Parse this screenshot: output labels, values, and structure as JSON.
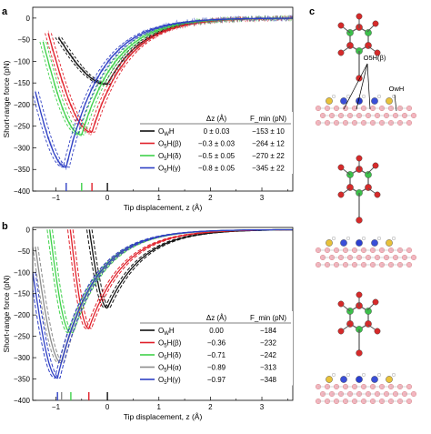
{
  "panels": {
    "a": "a",
    "b": "b",
    "c": "c"
  },
  "colors": {
    "OwH": "#111111",
    "O5H_beta": "#e0202a",
    "O5H_delta": "#3fd14a",
    "O5H_alpha": "#8c8c8c",
    "O5H_gamma": "#2e3fc4"
  },
  "chart_data": [
    {
      "id": "a",
      "type": "line",
      "xlabel": "Tip displacement, z (Å)",
      "ylabel": "Short-range force (pN)",
      "xlim": [
        -1.45,
        3.6
      ],
      "ylim": [
        -400,
        25
      ],
      "xticks": [
        -1,
        0,
        1,
        2,
        3
      ],
      "yticks": [
        0,
        -50,
        -100,
        -150,
        -200,
        -250,
        -300,
        -350,
        -400
      ],
      "legend": {
        "position": "lower-right",
        "headers": [
          "Δz (Å)",
          "F_min (pN)"
        ]
      },
      "series": [
        {
          "name": "OwH",
          "key": "OwH",
          "dz": "0 ± 0.03",
          "fmin": "−153 ± 10",
          "dz_value": 0.0,
          "fmin_value": -153,
          "x_start": -0.95,
          "y_start": -45
        },
        {
          "name": "O5H(β)",
          "key": "O5H_beta",
          "dz": "−0.3 ± 0.03",
          "fmin": "−264 ± 12",
          "dz_value": -0.3,
          "fmin_value": -264,
          "x_start": -1.15,
          "y_start": -35
        },
        {
          "name": "O5H(δ)",
          "key": "O5H_delta",
          "dz": "−0.5 ± 0.05",
          "fmin": "−270 ± 22",
          "dz_value": -0.5,
          "fmin_value": -270,
          "x_start": -1.25,
          "y_start": -55
        },
        {
          "name": "O5H(γ)",
          "key": "O5H_gamma",
          "dz": "−0.8 ± 0.05",
          "fmin": "−345 ± 22",
          "dz_value": -0.8,
          "fmin_value": -345,
          "x_start": -1.4,
          "y_start": -170
        }
      ]
    },
    {
      "id": "b",
      "type": "line",
      "xlabel": "Tip displacement, z (Å)",
      "ylabel": "Short-range force (pN)",
      "xlim": [
        -1.45,
        3.6
      ],
      "ylim": [
        -400,
        5
      ],
      "xticks": [
        -1,
        0,
        1,
        2,
        3
      ],
      "yticks": [
        0,
        -50,
        -100,
        -150,
        -200,
        -250,
        -300,
        -350,
        -400
      ],
      "legend": {
        "position": "lower-right",
        "headers": [
          "Δz (Å)",
          "F_min (pN)"
        ]
      },
      "series": [
        {
          "name": "OwH",
          "key": "OwH",
          "dz": "0.00",
          "fmin": "−184",
          "dz_value": 0.0,
          "fmin_value": -184,
          "x_start": -0.35,
          "y_start": 0
        },
        {
          "name": "O5H(β)",
          "key": "O5H_beta",
          "dz": "−0.36",
          "fmin": "−232",
          "dz_value": -0.36,
          "fmin_value": -232,
          "x_start": -0.72,
          "y_start": 0
        },
        {
          "name": "O5H(δ)",
          "key": "O5H_delta",
          "dz": "−0.71",
          "fmin": "−242",
          "dz_value": -0.71,
          "fmin_value": -242,
          "x_start": -1.12,
          "y_start": 0
        },
        {
          "name": "O5H(α)",
          "key": "O5H_alpha",
          "dz": "−0.89",
          "fmin": "−313",
          "dz_value": -0.89,
          "fmin_value": -313,
          "x_start": -1.4,
          "y_start": -40
        },
        {
          "name": "O5H(γ)",
          "key": "O5H_gamma",
          "dz": "−0.97",
          "fmin": "−348",
          "dz_value": -0.97,
          "fmin_value": -348,
          "x_start": -1.45,
          "y_start": -100
        }
      ]
    }
  ],
  "molecule": {
    "annotations": [
      "O5H(β)",
      "OwH"
    ]
  }
}
